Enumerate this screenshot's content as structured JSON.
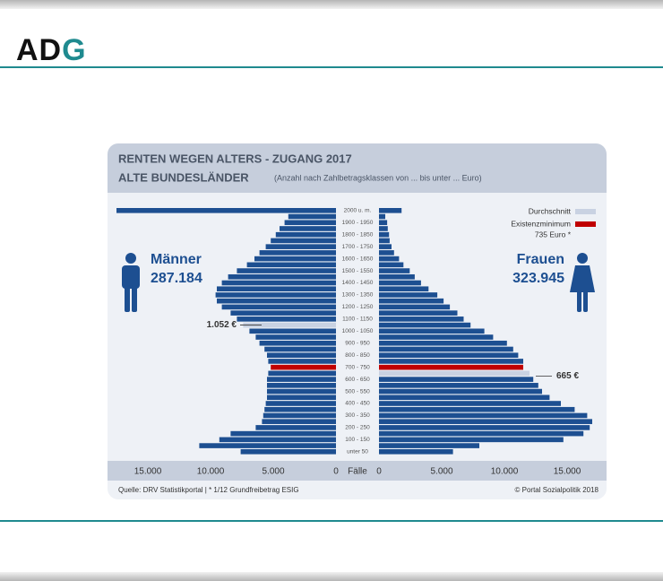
{
  "logo": "ADG",
  "chart_data": {
    "type": "pyramid",
    "title": "RENTEN WEGEN ALTERS - ZUGANG 2017",
    "subtitle": "ALTE BUNDESLÄNDER",
    "note": "(Anzahl nach Zahlbetragsklassen von ... bis unter ... Euro)",
    "categories": [
      "2000 u. m.",
      null,
      "1900 - 1950",
      null,
      "1800 - 1850",
      null,
      "1700 - 1750",
      null,
      "1600 - 1650",
      null,
      "1500 - 1550",
      null,
      "1400 - 1450",
      null,
      "1300 - 1350",
      null,
      "1200 - 1250",
      null,
      "1100 - 1150",
      null,
      "1000 - 1050",
      null,
      "900 - 950",
      null,
      "800 - 850",
      null,
      "700 - 750",
      null,
      "600 - 650",
      null,
      "500 - 550",
      null,
      "400 - 450",
      null,
      "300 - 350",
      null,
      "200 - 250",
      null,
      "100 - 150",
      null,
      "unter 50"
    ],
    "series": [
      {
        "name": "Männer",
        "total": "287.184",
        "side": "left",
        "color": "#1d4f91",
        "average_row": 19,
        "average_label": "1.052 €",
        "values": [
          17500,
          3800,
          4100,
          4500,
          4800,
          5200,
          5600,
          6100,
          6500,
          7100,
          7900,
          8600,
          9100,
          9500,
          9600,
          9500,
          9100,
          8400,
          7900,
          7400,
          6900,
          6400,
          6100,
          5700,
          5500,
          5400,
          5200,
          5400,
          5500,
          5500,
          5500,
          5500,
          5600,
          5700,
          5800,
          5900,
          6400,
          8400,
          9300,
          10900,
          7600
        ]
      },
      {
        "name": "Frauen",
        "total": "323.945",
        "side": "right",
        "color": "#1d4f91",
        "average_row": 27,
        "average_label": "665 €",
        "values": [
          1800,
          500,
          650,
          700,
          800,
          850,
          1000,
          1200,
          1600,
          1950,
          2450,
          2850,
          3350,
          3950,
          4650,
          5150,
          5650,
          6250,
          6750,
          7300,
          8400,
          9100,
          10200,
          10700,
          11100,
          11500,
          11500,
          12000,
          12300,
          12700,
          13000,
          13600,
          14500,
          15600,
          16600,
          17000,
          16800,
          16300,
          14700,
          8000,
          5900
        ]
      }
    ],
    "legend": [
      {
        "label": "Durchschnitt",
        "color": "#c9d2e2"
      },
      {
        "label": "Existenzminimum",
        "sublabel": "735 Euro *",
        "color": "#c00000",
        "row": 26
      }
    ],
    "xlim": [
      0,
      17500
    ],
    "xticks": [
      {
        "value": 0,
        "label": "0"
      },
      {
        "value": 5000,
        "label": "5.000"
      },
      {
        "value": 10000,
        "label": "10.000"
      },
      {
        "value": 15000,
        "label": "15.000"
      }
    ],
    "center_axis_label": "Fälle",
    "source": "Quelle: DRV Statistikportal | * 1/12 Grundfreibetrag ESIG",
    "copyright": "© Portal Sozialpolitik 2018"
  }
}
